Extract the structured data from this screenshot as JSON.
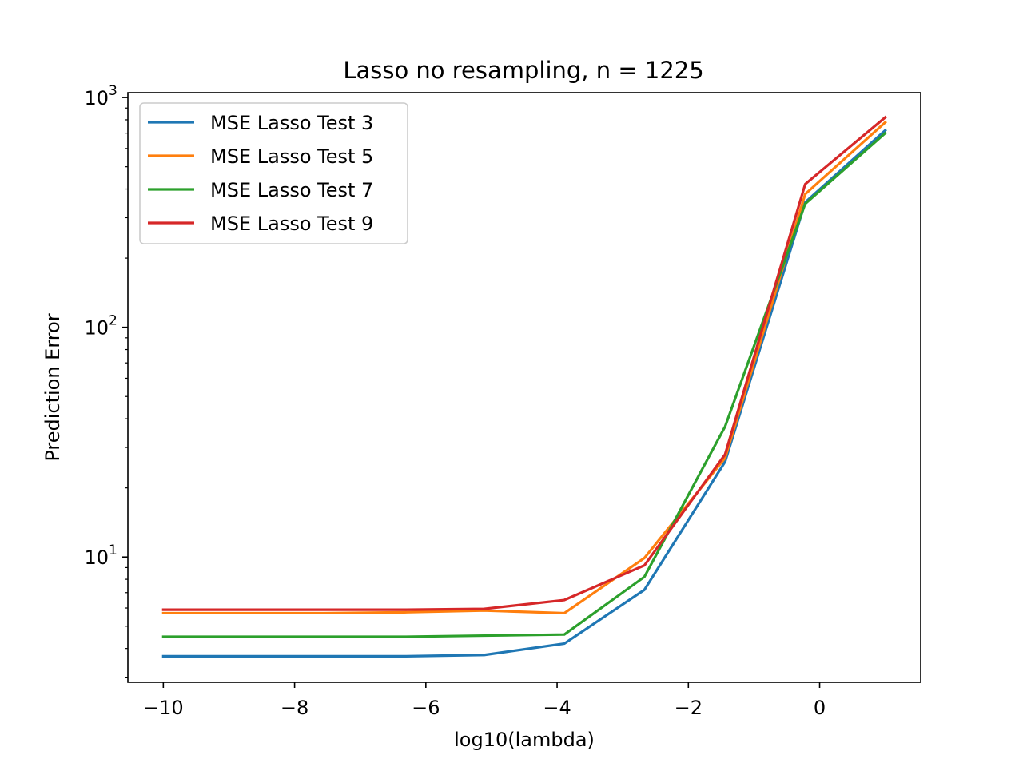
{
  "chart_data": {
    "type": "line",
    "title": "Lasso no resampling, n = 1225",
    "xlabel": "log10(lambda)",
    "ylabel": "Prediction Error",
    "xscale": "linear",
    "yscale": "log",
    "xlim": [
      -10.54,
      1.54
    ],
    "ylim": [
      2.85,
      1050
    ],
    "x_ticks": [
      -10,
      -8,
      -6,
      -4,
      -2,
      0
    ],
    "x_tick_labels": [
      "−10",
      "−8",
      "−6",
      "−4",
      "−2",
      "0"
    ],
    "y_major_ticks": [
      10,
      100,
      1000
    ],
    "y_tick_labels": [
      {
        "base": "10",
        "exp": "1"
      },
      {
        "base": "10",
        "exp": "2"
      },
      {
        "base": "10",
        "exp": "3"
      }
    ],
    "grid": false,
    "legend_position": "top-left",
    "x": [
      -10,
      -8.78,
      -7.56,
      -6.33,
      -5.11,
      -3.89,
      -2.67,
      -1.44,
      -0.22,
      1
    ],
    "series": [
      {
        "name": "MSE Lasso Test 3",
        "color": "#1f77b4",
        "values": [
          3.7,
          3.7,
          3.7,
          3.7,
          3.75,
          4.2,
          7.2,
          26,
          350,
          720
        ]
      },
      {
        "name": "MSE Lasso Test 5",
        "color": "#ff7f0e",
        "values": [
          5.7,
          5.7,
          5.7,
          5.75,
          5.85,
          5.7,
          9.9,
          27,
          380,
          780
        ]
      },
      {
        "name": "MSE Lasso Test 7",
        "color": "#2ca02c",
        "values": [
          4.5,
          4.5,
          4.5,
          4.5,
          4.55,
          4.6,
          8.2,
          37,
          345,
          700
        ]
      },
      {
        "name": "MSE Lasso Test 9",
        "color": "#d62728",
        "values": [
          5.9,
          5.9,
          5.9,
          5.9,
          5.95,
          6.5,
          9.2,
          28,
          420,
          820
        ]
      }
    ]
  }
}
